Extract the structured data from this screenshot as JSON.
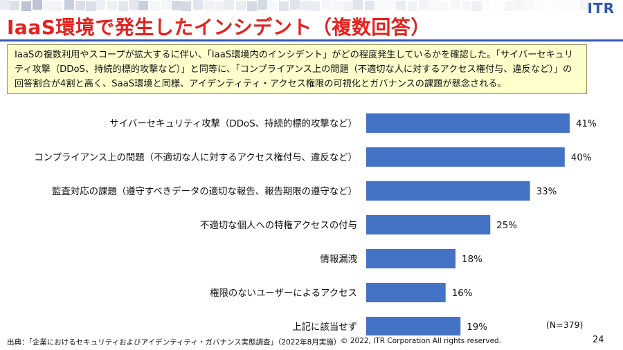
{
  "logo": "ITR",
  "title": "IaaS環境で発生したインシデント（複数回答）",
  "description": "IaaSの複数利用やスコープが拡大するに伴い、「IaaS環境内のインシデント」がどの程度発生しているかを確認した。「サイバーセキュリティ攻撃（DDoS、持続的標的攻撃など）」と同等に、「コンプライアンス上の問題（不適切な人に対するアクセス権付与、違反など）」の回答割合が4割と高く、SaaS環境と同様、アイデンティティ・アクセス権限の可視化とガバナンスの課題が懸念される。",
  "colors": {
    "bar": "#4472c4",
    "title": "#e4211c",
    "accent": "#2f57b7",
    "desc_bg": "#ffffcc"
  },
  "chart_data": {
    "type": "bar",
    "orientation": "horizontal",
    "categories": [
      "サイバーセキュリティ攻撃（DDoS、持続的標的攻撃など）",
      "コンプライアンス上の問題（不適切な人に対するアクセス権付与、違反など）",
      "監査対応の課題（遵守すべきデータの適切な報告、報告期限の遵守など）",
      "不適切な個人への特権アクセスの付与",
      "情報漏洩",
      "権限のないユーザーによるアクセス",
      "上記に該当せず"
    ],
    "values": [
      41,
      40,
      33,
      25,
      18,
      16,
      19
    ],
    "value_labels": [
      "41%",
      "40%",
      "33%",
      "25%",
      "18%",
      "16%",
      "19%"
    ],
    "unit": "%",
    "grid": false,
    "legend": "none"
  },
  "note": "(N=379)",
  "footer": {
    "source": "出典：「企業におけるセキュリティおよびアイデンティティ・ガバナンス実態調査」（2022年8月実施）",
    "copyright": "© 2022, ITR Corporation  All rights reserved.",
    "page": "24"
  }
}
